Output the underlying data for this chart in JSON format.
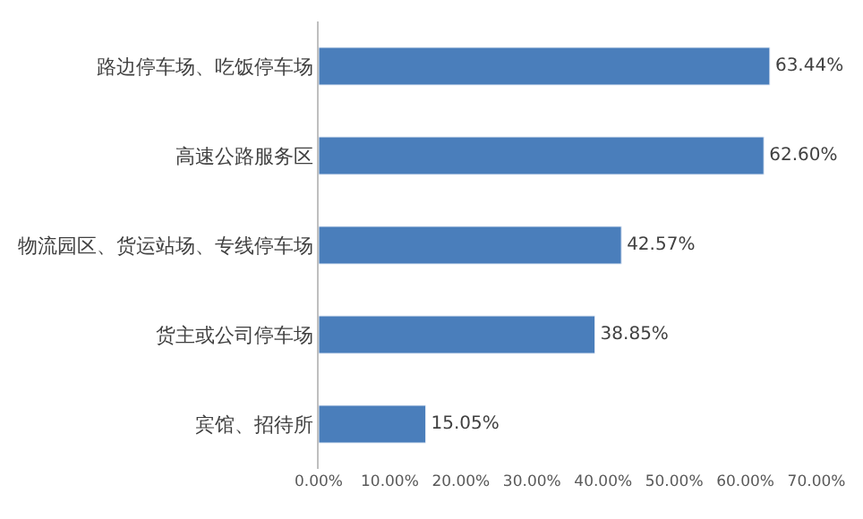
{
  "chart_data": {
    "type": "bar",
    "orientation": "horizontal",
    "categories": [
      "路边停车场、吃饭停车场",
      "高速公路服务区",
      "物流园区、货运站场、专线停车场",
      "货主或公司停车场",
      "宾馆、招待所"
    ],
    "values": [
      63.44,
      62.6,
      42.57,
      38.85,
      15.05
    ],
    "value_labels": [
      "63.44%",
      "62.60%",
      "42.57%",
      "38.85%",
      "15.05%"
    ],
    "color": "#4a7ebb",
    "xlim": [
      0,
      70
    ],
    "xticks": [
      {
        "value": 0,
        "label": "0.00%"
      },
      {
        "value": 10,
        "label": "10.00%"
      },
      {
        "value": 20,
        "label": "20.00%"
      },
      {
        "value": 30,
        "label": "30.00%"
      },
      {
        "value": 40,
        "label": "40.00%"
      },
      {
        "value": 50,
        "label": "50.00%"
      },
      {
        "value": 60,
        "label": "60.00%"
      },
      {
        "value": 70,
        "label": "70.00%"
      }
    ],
    "grid": false
  }
}
